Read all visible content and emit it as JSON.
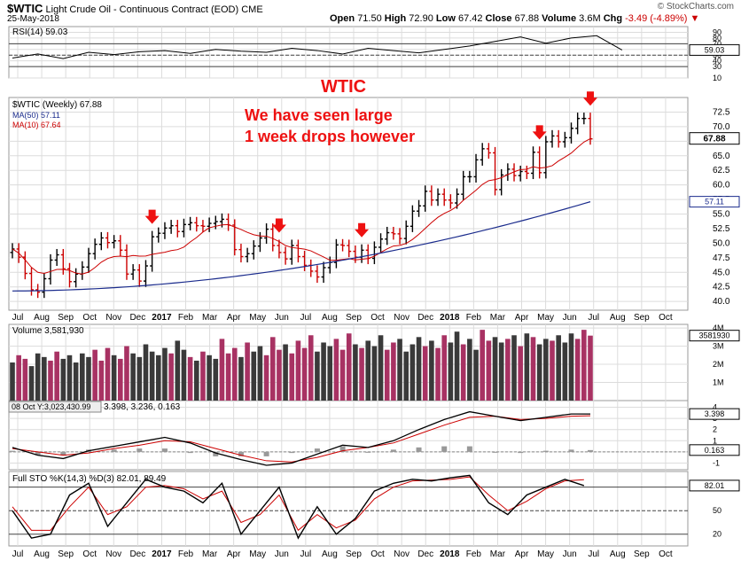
{
  "header": {
    "symbol": "$WTIC",
    "name": "Light Crude Oil - Continuous Contract (EOD)",
    "exchange": "CME",
    "date": "25-May-2018",
    "brand": "© StockCharts.com",
    "open_label": "Open",
    "open": "71.50",
    "high_label": "High",
    "high": "72.90",
    "low_label": "Low",
    "low": "67.42",
    "close_label": "Close",
    "close": "67.88",
    "volume_label": "Volume",
    "volume": "3.6M",
    "chg_label": "Chg",
    "chg": "-3.49 (-4.89%)",
    "chg_arrow": "▼"
  },
  "colors": {
    "up": "#000000",
    "down": "#cc0000",
    "ma50": "#1a2b8c",
    "ma10": "#cc0000",
    "vol_up": "#3a3a3a",
    "vol_down": "#a83263",
    "annotation": "#ee1111",
    "grid": "#dcdcdc"
  },
  "annotations": {
    "title": "WTIC",
    "line1": "We have seen large",
    "line2": "1 week drops however"
  },
  "chart_data": [
    {
      "type": "line",
      "panel": "rsi",
      "label": "RSI(14) 59.03",
      "current": "59.03",
      "ylim": [
        10,
        100
      ],
      "ticks": [
        "90",
        "80",
        "70",
        "60",
        "50",
        "40",
        "30",
        "10"
      ],
      "reference_lines": [
        70,
        50,
        30
      ],
      "x": [
        0,
        4,
        8,
        12,
        16,
        20,
        24,
        28,
        32,
        36,
        40,
        44,
        48,
        52,
        56,
        60,
        64,
        68,
        72,
        76,
        80,
        84,
        88,
        92,
        96
      ],
      "values": [
        45,
        52,
        44,
        55,
        51,
        56,
        58,
        53,
        60,
        57,
        55,
        62,
        58,
        52,
        62,
        58,
        54,
        60,
        66,
        74,
        82,
        71,
        80,
        84,
        59
      ]
    },
    {
      "type": "ohlc",
      "panel": "price",
      "label": "$WTIC (Weekly) 67.88",
      "last": "67.88",
      "ylim": [
        38.5,
        75
      ],
      "ticks": [
        "72.5",
        "70.0",
        "67.5",
        "65.0",
        "62.5",
        "60.0",
        "57.5",
        "55.0",
        "52.5",
        "50.0",
        "47.5",
        "45.0",
        "42.5",
        "40.0"
      ],
      "x_labels": [
        "Jul",
        "Aug",
        "Sep",
        "Oct",
        "Nov",
        "Dec",
        "2017",
        "Feb",
        "Mar",
        "Apr",
        "May",
        "Jun",
        "Jul",
        "Aug",
        "Sep",
        "Oct",
        "Nov",
        "Dec",
        "2018",
        "Feb",
        "Mar",
        "Apr",
        "May",
        "Jun",
        "Jul",
        "Aug",
        "Sep",
        "Oct"
      ],
      "close": [
        49.0,
        47.6,
        44.8,
        42.0,
        41.6,
        43.9,
        47.1,
        48.0,
        45.6,
        43.4,
        44.7,
        45.9,
        48.2,
        49.8,
        50.9,
        50.1,
        50.4,
        48.8,
        44.7,
        45.4,
        43.5,
        46.1,
        51.1,
        51.7,
        52.6,
        53.0,
        52.0,
        53.2,
        53.5,
        53.0,
        52.9,
        53.4,
        53.7,
        54.1,
        53.1,
        48.9,
        47.7,
        48.2,
        49.5,
        50.9,
        52.4,
        49.6,
        48.4,
        47.3,
        49.6,
        47.7,
        46.2,
        45.2,
        44.2,
        45.8,
        46.7,
        49.7,
        49.6,
        48.6,
        47.6,
        48.8,
        47.4,
        49.3,
        50.7,
        51.8,
        51.6,
        50.8,
        52.9,
        55.5,
        56.4,
        58.9,
        57.4,
        58.4,
        57.4,
        56.9,
        58.4,
        61.4,
        61.4,
        64.3,
        66.2,
        65.5,
        59.2,
        61.7,
        62.7,
        61.6,
        62.3,
        62.0,
        65.6,
        62.1,
        67.4,
        68.4,
        67.4,
        68.1,
        69.7,
        71.4,
        71.4,
        67.9
      ],
      "ma50_end": "57.11",
      "ma10_end": "67.64",
      "legend": [
        "MA(50) 57.11",
        "MA(10) 67.64"
      ],
      "arrow_weeks": [
        22,
        42,
        55,
        83,
        91
      ]
    },
    {
      "type": "bar",
      "panel": "volume",
      "label": "Volume 3,581,930",
      "current": "3581930",
      "ylim": [
        0,
        4.2
      ],
      "ticks": [
        "4M",
        "3M",
        "2M",
        "1M"
      ],
      "values": [
        2.1,
        2.5,
        2.3,
        1.9,
        2.6,
        2.4,
        2.2,
        2.7,
        2.3,
        2.5,
        2.1,
        2.6,
        2.4,
        2.8,
        2.2,
        2.9,
        2.5,
        2.3,
        3.0,
        2.6,
        2.4,
        3.1,
        2.7,
        2.5,
        2.9,
        2.6,
        3.3,
        2.8,
        2.4,
        2.2,
        2.7,
        2.5,
        2.3,
        3.4,
        2.6,
        2.9,
        2.4,
        3.2,
        2.7,
        3.0,
        2.5,
        3.5,
        2.8,
        3.1,
        2.6,
        3.3,
        2.9,
        3.6,
        2.7,
        3.2,
        3.0,
        3.4,
        2.8,
        3.7,
        3.1,
        2.9,
        3.3,
        3.0,
        3.6,
        2.8,
        3.2,
        3.4,
        2.7,
        3.1,
        3.5,
        3.0,
        3.3,
        2.9,
        3.6,
        3.2,
        3.8,
        3.1,
        3.4,
        2.8,
        3.9,
        3.3,
        3.5,
        3.2,
        3.4,
        3.6,
        3.0,
        3.7,
        3.5,
        3.1,
        3.4,
        3.3,
        3.6,
        3.2,
        3.7,
        3.4,
        3.9,
        3.58
      ],
      "up": [
        1,
        0,
        0,
        1,
        1,
        1,
        0,
        0,
        1,
        1,
        1,
        1,
        1,
        0,
        0,
        0,
        1,
        0,
        0,
        1,
        1,
        1,
        1,
        1,
        1,
        0,
        1,
        1,
        0,
        1,
        0,
        1,
        1,
        0,
        0,
        0,
        1,
        0,
        1,
        1,
        0,
        0,
        0,
        1,
        0,
        0,
        0,
        0,
        1,
        1,
        1,
        0,
        0,
        0,
        1,
        0,
        1,
        1,
        1,
        0,
        0,
        1,
        1,
        1,
        1,
        0,
        1,
        0,
        0,
        1,
        1,
        0,
        1,
        1,
        0,
        0,
        1,
        1,
        0,
        1,
        0,
        1,
        0,
        1,
        1,
        0,
        1,
        1,
        1,
        0,
        0,
        0
      ],
      "last_label": "3581930"
    },
    {
      "type": "line",
      "panel": "macd",
      "label": "MACD(12,26,9) 3.398, 3.236, 0.163",
      "label_prefix": "08 Oct Y:3,023,430.99",
      "label_values": "3.398, 3.236, 0.163",
      "current": [
        "3.398",
        "0.163"
      ],
      "ylim": [
        -1.6,
        4.6
      ],
      "ticks": [
        "4",
        "3",
        "2",
        "1",
        "0",
        "-1"
      ],
      "x": [
        0,
        4,
        8,
        12,
        16,
        20,
        24,
        28,
        32,
        36,
        40,
        44,
        48,
        52,
        56,
        60,
        64,
        68,
        72,
        76,
        80,
        84,
        88,
        91
      ],
      "macd": [
        0.4,
        -0.3,
        -0.6,
        0.1,
        0.5,
        0.9,
        1.3,
        0.8,
        -0.1,
        -0.7,
        -1.2,
        -1.0,
        -0.2,
        0.6,
        0.4,
        1.0,
        2.0,
        2.9,
        3.6,
        3.2,
        2.8,
        3.1,
        3.4,
        3.4
      ],
      "signal": [
        0.3,
        0.0,
        -0.3,
        -0.1,
        0.3,
        0.6,
        1.0,
        0.9,
        0.3,
        -0.3,
        -0.8,
        -0.9,
        -0.5,
        0.1,
        0.4,
        0.8,
        1.6,
        2.4,
        3.1,
        3.2,
        2.9,
        3.0,
        3.2,
        3.24
      ],
      "histogram": [
        0.1,
        -0.3,
        -0.3,
        0.2,
        0.2,
        0.3,
        0.3,
        -0.1,
        -0.4,
        -0.4,
        -0.4,
        -0.1,
        0.3,
        0.5,
        0.0,
        0.2,
        0.4,
        0.5,
        0.5,
        0.0,
        -0.1,
        0.1,
        0.2,
        0.16
      ]
    },
    {
      "type": "line",
      "panel": "stochastic",
      "label": "Full STO %K(14,3) %D(3) 82.01, 89.49",
      "current": "82.01",
      "ylim": [
        5,
        100
      ],
      "ticks": [
        "80",
        "50",
        "20"
      ],
      "reference_lines": [
        80,
        50,
        20
      ],
      "x": [
        0,
        3,
        6,
        9,
        12,
        15,
        18,
        21,
        24,
        27,
        30,
        33,
        36,
        39,
        42,
        45,
        48,
        51,
        54,
        57,
        60,
        63,
        66,
        69,
        72,
        75,
        78,
        81,
        84,
        87,
        90
      ],
      "k": [
        50,
        15,
        20,
        70,
        85,
        30,
        60,
        90,
        80,
        75,
        60,
        85,
        20,
        50,
        80,
        15,
        55,
        20,
        40,
        75,
        85,
        90,
        88,
        92,
        95,
        60,
        45,
        70,
        80,
        90,
        82
      ],
      "d": [
        55,
        25,
        25,
        55,
        80,
        45,
        55,
        80,
        82,
        78,
        65,
        75,
        35,
        45,
        70,
        25,
        45,
        28,
        38,
        65,
        80,
        88,
        89,
        90,
        93,
        70,
        50,
        62,
        78,
        88,
        89.49
      ]
    }
  ]
}
